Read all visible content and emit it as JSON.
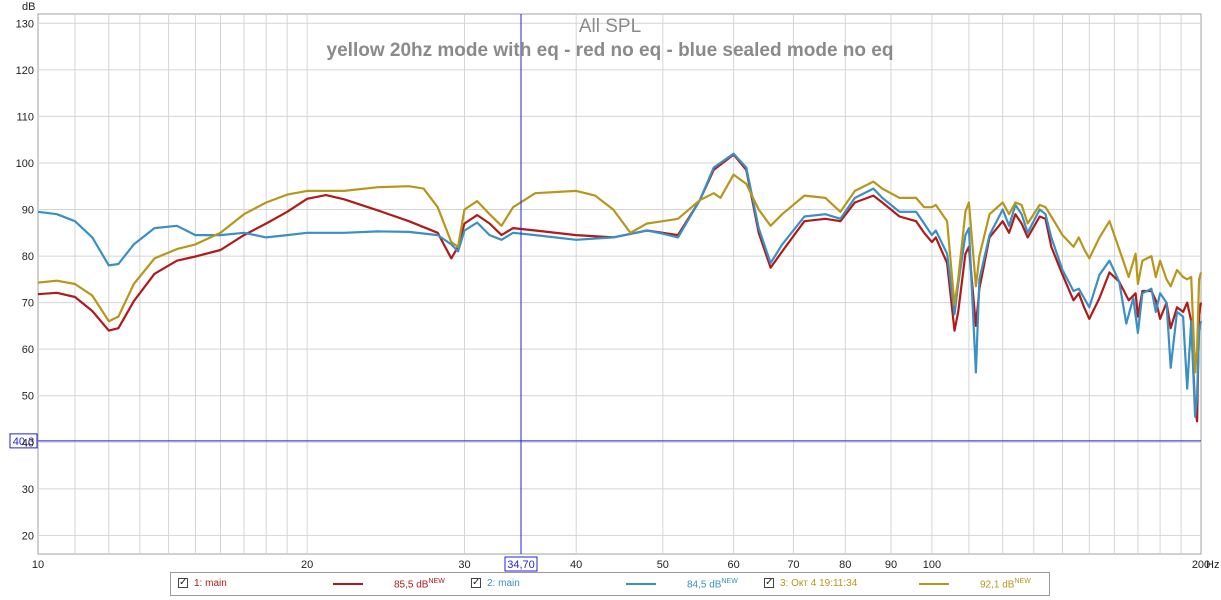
{
  "chart_data": {
    "type": "line",
    "title": "All SPL",
    "subtitle": "yellow 20hz mode with eq - red no eq - blue sealed mode no eq",
    "ylabel": "dB",
    "x_unit": "Hz",
    "x_scale": "log",
    "xlim": [
      10,
      200
    ],
    "ylim": [
      16,
      132
    ],
    "grid": true,
    "x_ticks": [
      10,
      20,
      30,
      40,
      50,
      60,
      70,
      80,
      90,
      100,
      200
    ],
    "y_ticks": [
      20,
      30,
      40,
      50,
      60,
      70,
      80,
      90,
      100,
      110,
      120,
      130
    ],
    "cursor": {
      "x": 34.7,
      "x_label": "34,70",
      "y": 40.3,
      "y_label": "40,3",
      "color": "#2222dd"
    },
    "series": [
      {
        "name": "1: main",
        "color": "#b01a1a",
        "level": "85,5 dB",
        "badge": "NEW",
        "points": [
          [
            10,
            71.8
          ],
          [
            10.5,
            72.1
          ],
          [
            11,
            71.2
          ],
          [
            11.5,
            68.2
          ],
          [
            12,
            64.0
          ],
          [
            12.3,
            64.5
          ],
          [
            12.8,
            70.3
          ],
          [
            13.5,
            76.2
          ],
          [
            14.3,
            79.0
          ],
          [
            15,
            79.9
          ],
          [
            16,
            81.3
          ],
          [
            17,
            84.5
          ],
          [
            18,
            87.0
          ],
          [
            19,
            89.5
          ],
          [
            20,
            92.3
          ],
          [
            21,
            93.1
          ],
          [
            22,
            92.2
          ],
          [
            24,
            89.8
          ],
          [
            26,
            87.5
          ],
          [
            28,
            85.0
          ],
          [
            29,
            79.5
          ],
          [
            29.5,
            82.0
          ],
          [
            30,
            87.0
          ],
          [
            31,
            88.8
          ],
          [
            32,
            87.0
          ],
          [
            33,
            84.5
          ],
          [
            34,
            86.0
          ],
          [
            36,
            85.5
          ],
          [
            40,
            84.5
          ],
          [
            44,
            84.0
          ],
          [
            48,
            85.5
          ],
          [
            50,
            85.0
          ],
          [
            52,
            84.5
          ],
          [
            55,
            92.0
          ],
          [
            57,
            98.5
          ],
          [
            60,
            101.8
          ],
          [
            62,
            98.5
          ],
          [
            64,
            85.0
          ],
          [
            66,
            77.5
          ],
          [
            68,
            81.0
          ],
          [
            72,
            87.5
          ],
          [
            76,
            88.0
          ],
          [
            79,
            87.5
          ],
          [
            82,
            91.5
          ],
          [
            86,
            93.0
          ],
          [
            88,
            91.5
          ],
          [
            92,
            88.5
          ],
          [
            96,
            87.5
          ],
          [
            98,
            85.0
          ],
          [
            100,
            83.0
          ],
          [
            101,
            84.0
          ],
          [
            104,
            78.5
          ],
          [
            106,
            64.0
          ],
          [
            107,
            68.0
          ],
          [
            109,
            80.5
          ],
          [
            110,
            82.0
          ],
          [
            112,
            65.0
          ],
          [
            113,
            73.0
          ],
          [
            116,
            84.0
          ],
          [
            120,
            87.5
          ],
          [
            122,
            85.0
          ],
          [
            124,
            89.0
          ],
          [
            126,
            87.0
          ],
          [
            128,
            84.0
          ],
          [
            132,
            88.5
          ],
          [
            134,
            88.0
          ],
          [
            136,
            82.0
          ],
          [
            140,
            76.0
          ],
          [
            144,
            70.5
          ],
          [
            146,
            72.0
          ],
          [
            148,
            69.0
          ],
          [
            150,
            66.5
          ],
          [
            154,
            71.0
          ],
          [
            158,
            76.5
          ],
          [
            162,
            74.5
          ],
          [
            166,
            70.5
          ],
          [
            169,
            72.0
          ],
          [
            170,
            67.0
          ],
          [
            172,
            72.5
          ],
          [
            176,
            72.5
          ],
          [
            178,
            70.5
          ],
          [
            180,
            66.5
          ],
          [
            183,
            70.0
          ],
          [
            185,
            64.5
          ],
          [
            188,
            69.0
          ],
          [
            191,
            68.0
          ],
          [
            193,
            70.0
          ],
          [
            195,
            66.0
          ],
          [
            197,
            47.5
          ],
          [
            198,
            44.5
          ],
          [
            199,
            67.5
          ],
          [
            200,
            70.0
          ]
        ]
      },
      {
        "name": "2: main",
        "color": "#3a8fc4",
        "level": "84,5 dB",
        "badge": "NEW",
        "points": [
          [
            10,
            89.5
          ],
          [
            10.5,
            89.0
          ],
          [
            11,
            87.5
          ],
          [
            11.5,
            84.0
          ],
          [
            12,
            78.0
          ],
          [
            12.3,
            78.3
          ],
          [
            12.8,
            82.5
          ],
          [
            13.5,
            86.0
          ],
          [
            14.3,
            86.5
          ],
          [
            15,
            84.5
          ],
          [
            16,
            84.5
          ],
          [
            17,
            85.0
          ],
          [
            18,
            84.0
          ],
          [
            19,
            84.5
          ],
          [
            20,
            85.0
          ],
          [
            22,
            85.0
          ],
          [
            24,
            85.3
          ],
          [
            26,
            85.2
          ],
          [
            28,
            84.5
          ],
          [
            29,
            82.5
          ],
          [
            29.5,
            81.0
          ],
          [
            30,
            85.5
          ],
          [
            31,
            87.2
          ],
          [
            32,
            84.5
          ],
          [
            33,
            83.5
          ],
          [
            34,
            85.0
          ],
          [
            36,
            84.5
          ],
          [
            40,
            83.5
          ],
          [
            44,
            84.0
          ],
          [
            48,
            85.5
          ],
          [
            50,
            84.8
          ],
          [
            52,
            84.0
          ],
          [
            55,
            92.0
          ],
          [
            57,
            99.0
          ],
          [
            60,
            102.0
          ],
          [
            62,
            99.0
          ],
          [
            64,
            86.0
          ],
          [
            66,
            78.5
          ],
          [
            68,
            82.5
          ],
          [
            72,
            88.5
          ],
          [
            76,
            89.0
          ],
          [
            79,
            88.0
          ],
          [
            82,
            92.5
          ],
          [
            86,
            94.5
          ],
          [
            88,
            92.5
          ],
          [
            92,
            89.5
          ],
          [
            96,
            89.5
          ],
          [
            98,
            87.0
          ],
          [
            100,
            84.5
          ],
          [
            101,
            85.5
          ],
          [
            104,
            80.5
          ],
          [
            106,
            67.5
          ],
          [
            107,
            74.0
          ],
          [
            109,
            84.5
          ],
          [
            110,
            86.0
          ],
          [
            112,
            55.0
          ],
          [
            113,
            75.0
          ],
          [
            116,
            84.5
          ],
          [
            120,
            90.0
          ],
          [
            122,
            86.5
          ],
          [
            124,
            91.0
          ],
          [
            126,
            89.0
          ],
          [
            128,
            85.0
          ],
          [
            132,
            90.0
          ],
          [
            134,
            89.0
          ],
          [
            136,
            84.0
          ],
          [
            140,
            77.0
          ],
          [
            144,
            72.5
          ],
          [
            146,
            73.0
          ],
          [
            148,
            71.0
          ],
          [
            150,
            69.0
          ],
          [
            154,
            76.0
          ],
          [
            158,
            79.0
          ],
          [
            162,
            74.5
          ],
          [
            165,
            65.5
          ],
          [
            168,
            71.0
          ],
          [
            170,
            63.5
          ],
          [
            172,
            72.0
          ],
          [
            176,
            73.0
          ],
          [
            178,
            68.0
          ],
          [
            180,
            72.0
          ],
          [
            183,
            70.0
          ],
          [
            185,
            56.0
          ],
          [
            188,
            68.0
          ],
          [
            191,
            67.0
          ],
          [
            193,
            51.5
          ],
          [
            195,
            66.0
          ],
          [
            197,
            45.5
          ],
          [
            198,
            50.0
          ],
          [
            199,
            64.0
          ],
          [
            200,
            66.0
          ]
        ]
      },
      {
        "name": "3: Окт 4 19:11:34",
        "color": "#b8961c",
        "level": "92,1 dB",
        "badge": "NEW",
        "points": [
          [
            10,
            74.3
          ],
          [
            10.5,
            74.7
          ],
          [
            11,
            74.0
          ],
          [
            11.5,
            71.5
          ],
          [
            12,
            66.0
          ],
          [
            12.3,
            67.0
          ],
          [
            12.8,
            74.0
          ],
          [
            13.5,
            79.5
          ],
          [
            14.3,
            81.5
          ],
          [
            15,
            82.5
          ],
          [
            16,
            85.0
          ],
          [
            17,
            89.0
          ],
          [
            18,
            91.5
          ],
          [
            19,
            93.2
          ],
          [
            20,
            94.0
          ],
          [
            22,
            94.0
          ],
          [
            24,
            94.8
          ],
          [
            26,
            95.0
          ],
          [
            27,
            94.5
          ],
          [
            28,
            90.5
          ],
          [
            29,
            83.0
          ],
          [
            29.5,
            82.0
          ],
          [
            30,
            90.0
          ],
          [
            31,
            91.8
          ],
          [
            32,
            89.0
          ],
          [
            33,
            86.5
          ],
          [
            34,
            90.5
          ],
          [
            36,
            93.5
          ],
          [
            40,
            94.0
          ],
          [
            42,
            93.0
          ],
          [
            44,
            90.0
          ],
          [
            46,
            85.0
          ],
          [
            48,
            87.0
          ],
          [
            50,
            87.5
          ],
          [
            52,
            88.0
          ],
          [
            55,
            92.0
          ],
          [
            57,
            93.5
          ],
          [
            58,
            92.5
          ],
          [
            60,
            97.5
          ],
          [
            62,
            95.5
          ],
          [
            64,
            90.0
          ],
          [
            66,
            86.5
          ],
          [
            68,
            89.0
          ],
          [
            72,
            93.0
          ],
          [
            76,
            92.5
          ],
          [
            79,
            89.5
          ],
          [
            82,
            94.0
          ],
          [
            86,
            96.0
          ],
          [
            88,
            94.5
          ],
          [
            92,
            92.5
          ],
          [
            96,
            92.5
          ],
          [
            98,
            90.5
          ],
          [
            100,
            90.5
          ],
          [
            101,
            91.0
          ],
          [
            104,
            87.5
          ],
          [
            106,
            69.5
          ],
          [
            107,
            75.0
          ],
          [
            109,
            89.5
          ],
          [
            110,
            91.5
          ],
          [
            112,
            73.5
          ],
          [
            113,
            80.0
          ],
          [
            116,
            89.0
          ],
          [
            120,
            91.5
          ],
          [
            122,
            89.0
          ],
          [
            124,
            91.5
          ],
          [
            126,
            91.0
          ],
          [
            128,
            87.0
          ],
          [
            132,
            91.0
          ],
          [
            134,
            90.5
          ],
          [
            136,
            88.5
          ],
          [
            140,
            84.5
          ],
          [
            144,
            82.0
          ],
          [
            146,
            84.0
          ],
          [
            148,
            81.5
          ],
          [
            150,
            79.5
          ],
          [
            154,
            84.0
          ],
          [
            158,
            87.5
          ],
          [
            162,
            81.5
          ],
          [
            166,
            75.5
          ],
          [
            169,
            80.5
          ],
          [
            170,
            74.0
          ],
          [
            172,
            79.0
          ],
          [
            176,
            80.0
          ],
          [
            178,
            75.5
          ],
          [
            180,
            79.0
          ],
          [
            183,
            75.0
          ],
          [
            185,
            73.5
          ],
          [
            188,
            77.0
          ],
          [
            191,
            75.5
          ],
          [
            193,
            75.0
          ],
          [
            195,
            75.5
          ],
          [
            197,
            55.0
          ],
          [
            198,
            60.0
          ],
          [
            199,
            75.0
          ],
          [
            200,
            76.5
          ]
        ]
      }
    ]
  },
  "axis_unit_label": "Hz"
}
